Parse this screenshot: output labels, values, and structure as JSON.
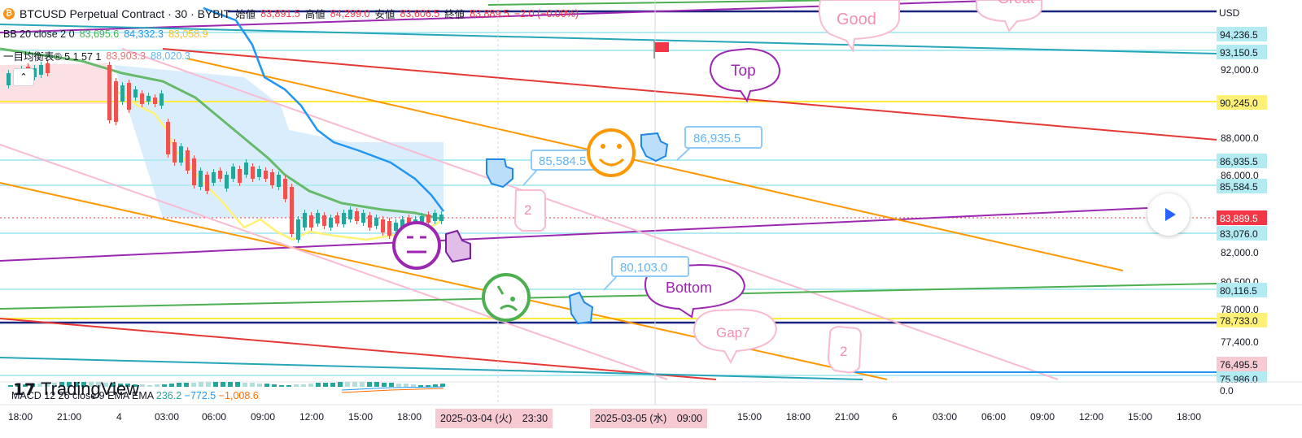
{
  "header": {
    "symbol_line": "BTCUSD Perpetual Contract · 30 · BYBIT",
    "ohlc": [
      {
        "label": "始値",
        "value": "83,891.5"
      },
      {
        "label": "高値",
        "value": "84,299.0"
      },
      {
        "label": "安値",
        "value": "83,606.5"
      },
      {
        "label": "終値",
        "value": "83,889.5"
      },
      {
        "label": "",
        "value": "−2.0 (−0.00%)"
      }
    ],
    "bb_label": "BB 20 close 2 0",
    "bb_values": [
      "83,695.6",
      "84,332.3",
      "83,058.9"
    ],
    "ichimoku_label": "一目均衡表® 5 1 57 1",
    "ichimoku_values": [
      "83,903.3",
      "88,020.3"
    ]
  },
  "price_axis": {
    "currency": "USD",
    "labels": [
      "92,000.0",
      "88,000.0",
      "86,000.0",
      "82,000.0",
      "80,500.0",
      "78,000.0",
      "77,400.0"
    ],
    "tags": [
      {
        "text": "94,236.5",
        "bg": "#b2ebf2"
      },
      {
        "text": "93,150.5",
        "bg": "#b2ebf2"
      },
      {
        "text": "90,245.0",
        "bg": "#fff176"
      },
      {
        "text": "86,935.5",
        "bg": "#b2ebf2"
      },
      {
        "text": "85,584.5",
        "bg": "#b2ebf2"
      },
      {
        "text": "83,889.5",
        "bg": "#f23645"
      },
      {
        "text": "83,076.0",
        "bg": "#b2ebf2"
      },
      {
        "text": "80,116.5",
        "bg": "#b2ebf2"
      },
      {
        "text": "78,733.0",
        "bg": "#fff176"
      },
      {
        "text": "76,495.5",
        "bg": "#f7c9d1"
      },
      {
        "text": "75,986.0",
        "bg": "#b2ebf2"
      },
      {
        "text": "0.0",
        "bg": "#ffffff"
      }
    ]
  },
  "time_axis": {
    "labels": [
      "18:00",
      "21:00",
      "4",
      "03:00",
      "06:00",
      "09:00",
      "12:00",
      "15:00",
      "18:00",
      "15:00",
      "18:00",
      "21:00",
      "6",
      "03:00",
      "06:00",
      "09:00",
      "12:00",
      "15:00",
      "18:00"
    ],
    "highlight_1": "2025-03-04 (火)　23:30",
    "highlight_2": "2025-03-05 (水)　09:00"
  },
  "annotations": {
    "good": "Good",
    "great": "Great",
    "top": "Top",
    "bottom": "Bottom",
    "gap": "Gap7",
    "two_a": "2",
    "two_b": "2",
    "callout_1": "85,584.5",
    "callout_2": "86,935.5",
    "callout_3": "80,103.0"
  },
  "macd": {
    "label": "MACD 12 26 close 9 EMA EMA",
    "values": [
      "236.2",
      "−772.5",
      "−1,008.6"
    ]
  },
  "brand": "TradingView",
  "colors": {
    "purple": "#9c27b0",
    "orange": "#ff9800",
    "red": "#e53935",
    "green": "#4caf50",
    "cyan": "#26a6b8",
    "navy": "#1a237e",
    "yellow": "#ffeb3b",
    "pink": "#f8bbd0",
    "blue": "#2196f3"
  }
}
